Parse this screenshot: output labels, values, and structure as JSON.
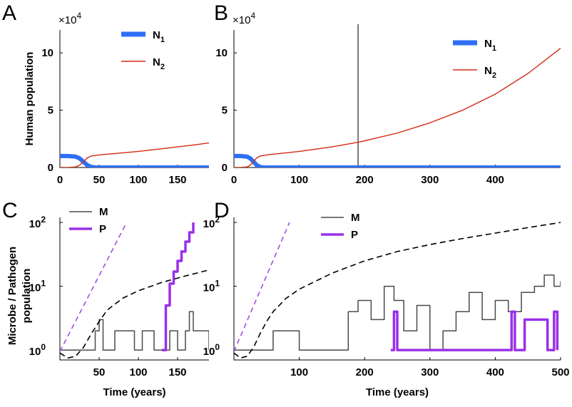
{
  "figure": {
    "panels": [
      "A",
      "B",
      "C",
      "D"
    ],
    "exponent_base": "×10",
    "exponent_power": "4"
  },
  "colors": {
    "N1": "#2f6ff5",
    "N2": "#d42a10",
    "M": "#4a4a4a",
    "P": "#9b30e8",
    "dashed_purple": "#a04fe0",
    "dashed_black": "#000000"
  },
  "chart_data": [
    {
      "panel": "A",
      "type": "line",
      "ylabel": "Human population",
      "xlabel": "",
      "x_ticks": [
        "0",
        "50",
        "100",
        "150"
      ],
      "y_ticks": [
        "0",
        "5",
        "10"
      ],
      "xlim": [
        0,
        190
      ],
      "ylim": [
        0,
        12
      ],
      "y_multiplier": "10^4",
      "legend": [
        "N",
        "N"
      ],
      "legend_sub": [
        "1",
        "2"
      ],
      "series": [
        {
          "name": "N1",
          "x": [
            0,
            10,
            20,
            25,
            30,
            35,
            40,
            45,
            50,
            100,
            150,
            190
          ],
          "y": [
            1.0,
            1.0,
            0.95,
            0.8,
            0.5,
            0.2,
            0.05,
            0.01,
            0,
            0,
            0,
            0
          ]
        },
        {
          "name": "N2",
          "x": [
            0,
            10,
            20,
            25,
            30,
            35,
            40,
            50,
            75,
            100,
            125,
            150,
            175,
            190
          ],
          "y": [
            0,
            0,
            0.05,
            0.2,
            0.5,
            0.85,
            1.0,
            1.1,
            1.25,
            1.4,
            1.6,
            1.8,
            2.0,
            2.15
          ]
        }
      ]
    },
    {
      "panel": "B",
      "type": "line",
      "ylabel": "",
      "xlabel": "",
      "x_ticks": [
        "0",
        "100",
        "200",
        "300",
        "400"
      ],
      "y_ticks": [
        "0",
        "5",
        "10"
      ],
      "xlim": [
        0,
        500
      ],
      "ylim": [
        0,
        12
      ],
      "y_multiplier": "10^4",
      "vertical_line_x": 190,
      "legend": [
        "N",
        "N"
      ],
      "legend_sub": [
        "1",
        "2"
      ],
      "series": [
        {
          "name": "N1",
          "x": [
            0,
            10,
            20,
            25,
            30,
            35,
            40,
            45,
            50,
            200,
            400,
            500
          ],
          "y": [
            1.0,
            1.0,
            0.95,
            0.8,
            0.5,
            0.2,
            0.05,
            0.01,
            0,
            0,
            0,
            0
          ]
        },
        {
          "name": "N2",
          "x": [
            0,
            10,
            20,
            25,
            30,
            35,
            40,
            50,
            100,
            150,
            190,
            250,
            300,
            350,
            400,
            450,
            500
          ],
          "y": [
            0,
            0,
            0.05,
            0.2,
            0.5,
            0.85,
            1.0,
            1.1,
            1.4,
            1.8,
            2.2,
            3.0,
            3.9,
            5.0,
            6.4,
            8.2,
            10.4
          ]
        }
      ]
    },
    {
      "panel": "C",
      "type": "line",
      "ylabel": "Microbe / Pathogen population",
      "xlabel": "Time (years)",
      "x_ticks": [
        "50",
        "100",
        "150"
      ],
      "y_ticks": [
        "10",
        "10",
        "10"
      ],
      "y_tick_powers": [
        "0",
        "1",
        "2"
      ],
      "xlim": [
        0,
        190
      ],
      "ylim": [
        0.7,
        120
      ],
      "yscale": "log",
      "legend": [
        "M",
        "P"
      ],
      "series": [
        {
          "name": "M",
          "x": [
            0,
            40,
            45,
            50,
            55,
            70,
            95,
            105,
            120,
            140,
            150,
            160,
            165,
            170,
            190
          ],
          "y": [
            1,
            1,
            2,
            3,
            1,
            2,
            1,
            2,
            1,
            2,
            1,
            2,
            4,
            2,
            1
          ]
        },
        {
          "name": "P",
          "x": [
            130,
            135,
            140,
            145,
            150,
            155,
            160,
            165,
            170
          ],
          "y": [
            1,
            5,
            11,
            17,
            25,
            35,
            50,
            70,
            100
          ]
        },
        {
          "name": "dashed_purple",
          "x": [
            0,
            85
          ],
          "y": [
            0.95,
            100
          ]
        },
        {
          "name": "dashed_black",
          "x": [
            0,
            10,
            20,
            30,
            40,
            50,
            60,
            80,
            100,
            130,
            160,
            190
          ],
          "y": [
            0.9,
            0.75,
            0.8,
            1.1,
            1.8,
            2.8,
            4.2,
            6.5,
            8.5,
            11.5,
            14.5,
            18
          ]
        }
      ]
    },
    {
      "panel": "D",
      "type": "line",
      "ylabel": "",
      "xlabel": "Time (years)",
      "x_ticks": [
        "100",
        "200",
        "300",
        "400",
        "500"
      ],
      "y_ticks": [
        "10",
        "10",
        "10"
      ],
      "y_tick_powers": [
        "0",
        "1",
        "2"
      ],
      "xlim": [
        0,
        500
      ],
      "ylim": [
        0.7,
        120
      ],
      "yscale": "log",
      "legend": [
        "M",
        "P"
      ],
      "series": [
        {
          "name": "M",
          "x": [
            0,
            50,
            60,
            100,
            150,
            175,
            190,
            210,
            230,
            245,
            260,
            280,
            300,
            320,
            340,
            360,
            380,
            400,
            420,
            440,
            460,
            475,
            490,
            500
          ],
          "y": [
            1,
            1,
            2,
            1,
            1,
            4,
            6,
            3,
            10,
            6,
            2,
            5,
            1,
            2,
            4,
            8,
            3,
            6,
            4,
            8,
            10,
            15,
            10,
            12
          ]
        },
        {
          "name": "P",
          "x": [
            240,
            245,
            250,
            420,
            425,
            430,
            445,
            475,
            480,
            490,
            495
          ],
          "y": [
            1,
            4,
            1,
            1,
            4,
            1,
            3,
            3,
            1,
            4,
            1
          ]
        },
        {
          "name": "dashed_purple",
          "x": [
            0,
            85
          ],
          "y": [
            0.95,
            100
          ]
        },
        {
          "name": "dashed_black",
          "x": [
            0,
            10,
            20,
            30,
            40,
            50,
            60,
            80,
            100,
            150,
            200,
            250,
            300,
            350,
            400,
            450,
            500
          ],
          "y": [
            0.9,
            0.75,
            0.8,
            1.1,
            1.8,
            2.8,
            4.0,
            6.5,
            9.0,
            16,
            25,
            35,
            45,
            56,
            68,
            83,
            100
          ]
        }
      ]
    }
  ]
}
